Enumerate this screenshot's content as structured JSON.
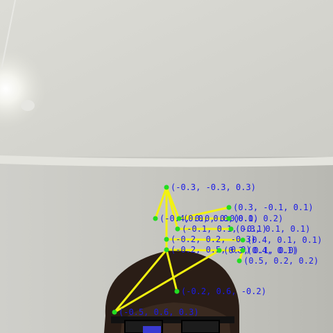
{
  "overlay": {
    "line_color": "#f2f20f",
    "point_color": "#22dd22",
    "label_color": "#1a1ae6"
  },
  "points": [
    {
      "id": "p0",
      "label": "(-0.3, -0.3, 0.3)"
    },
    {
      "id": "p1",
      "label": "(0.3, -0.1, 0.1)"
    },
    {
      "id": "p2",
      "label": "(-0.4, 0.0, 0.0)"
    },
    {
      "id": "p3",
      "label": "(0.0, 0.0, 0.0)"
    },
    {
      "id": "p4",
      "label": "(0.1, 0.2)"
    },
    {
      "id": "p5",
      "label": "(-0.1, 0.1, -0.1)"
    },
    {
      "id": "p6",
      "label": "(0.3, 0.1, 0.1)"
    },
    {
      "id": "p7",
      "label": "(-0.2, 0.2, -0.3)"
    },
    {
      "id": "p8",
      "label": "(0.4, 0.1, 0.1)"
    },
    {
      "id": "p9",
      "label": "(-0.2, 0.5, 0.0)"
    },
    {
      "id": "p10",
      "label": "(0.3, 0.1, 0.0)"
    },
    {
      "id": "p11",
      "label": "(0.4, 0.1)"
    },
    {
      "id": "p12",
      "label": "(0.5, 0.2, 0.2)"
    },
    {
      "id": "p13",
      "label": "(-0.2, 0.6, -0.2)"
    },
    {
      "id": "p14",
      "label": "(-0.5, 0.6, 0.3)"
    }
  ]
}
